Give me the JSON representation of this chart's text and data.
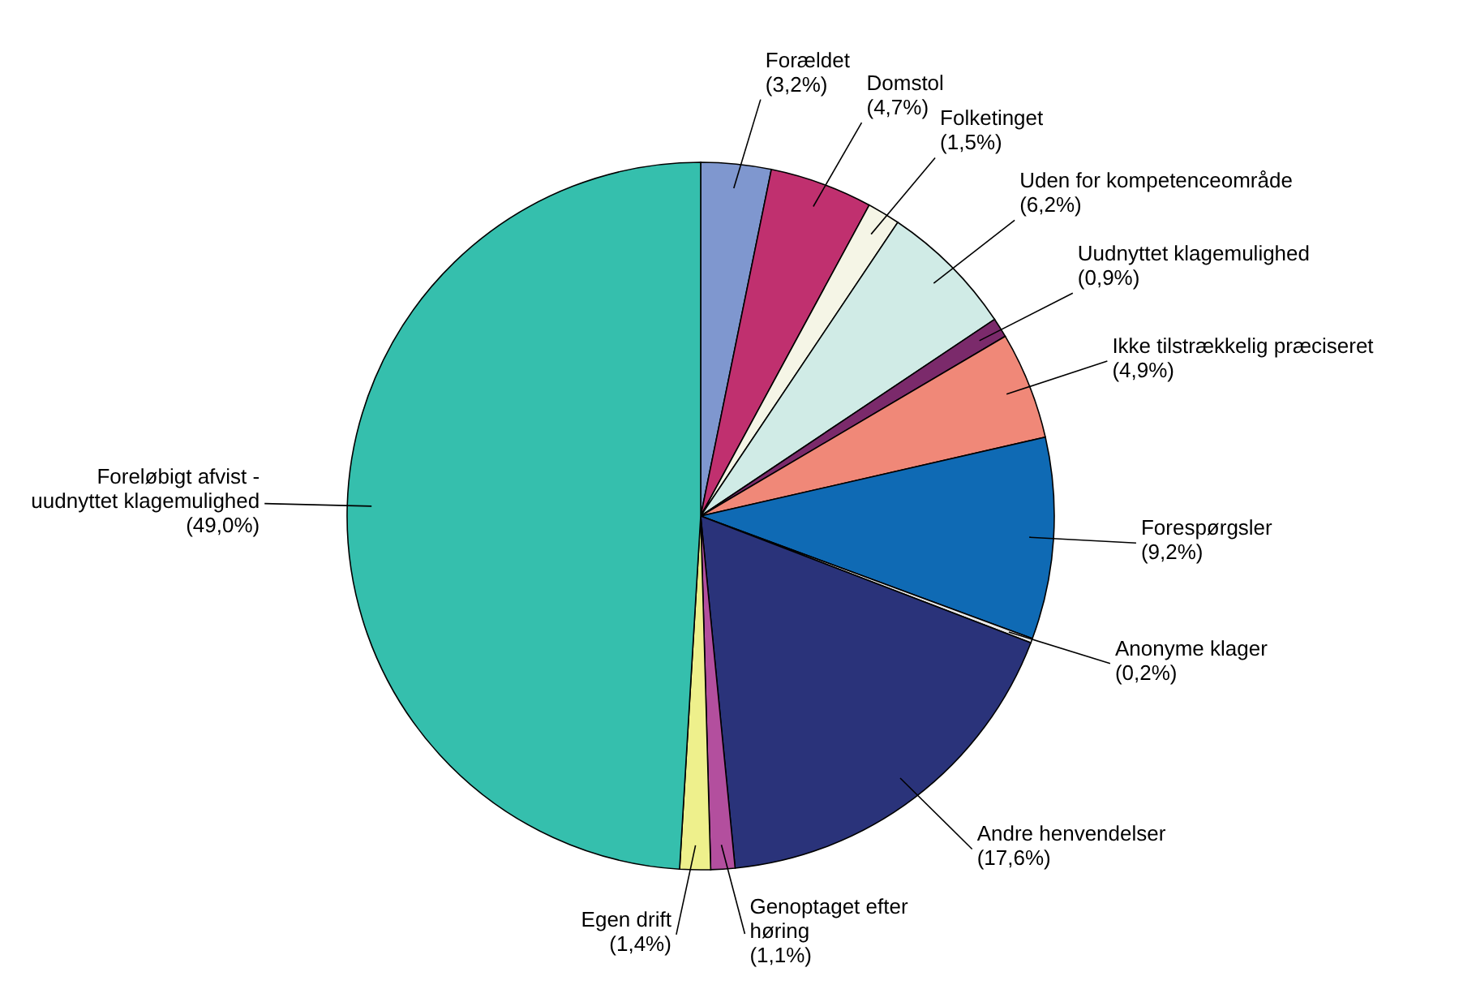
{
  "chart_data": {
    "type": "pie",
    "categories": [
      "Forældet",
      "Domstol",
      "Folketinget",
      "Uden for kompetenceområde",
      "Uudnyttet klagemulighed",
      "Ikke tilstrækkelig præciseret",
      "Forespørgsler",
      "Anonyme klager",
      "Andre henvendelser",
      "Genoptaget efter\nhøring",
      "Egen drift",
      "Foreløbigt afvist -\nuudnyttet klagemulighed"
    ],
    "values": [
      3.2,
      4.7,
      1.5,
      6.2,
      0.9,
      4.9,
      9.2,
      0.2,
      17.6,
      1.1,
      1.4,
      49.0
    ],
    "value_labels": [
      "(3,2%)",
      "(4,7%)",
      "(1,5%)",
      "(6,2%)",
      "(0,9%)",
      "(4,9%)",
      "(9,2%)",
      "(0,2%)",
      "(17,6%)",
      "(1,1%)",
      "(1,4%)",
      "(49,0%)"
    ],
    "colors": [
      "#7f97cf",
      "#c0306f",
      "#f5f5e6",
      "#d0ebe6",
      "#7b2a6b",
      "#f08878",
      "#0f6ab4",
      "#e8e8e8",
      "#2a337a",
      "#b34f9e",
      "#eef08c",
      "#35bfad"
    ]
  }
}
